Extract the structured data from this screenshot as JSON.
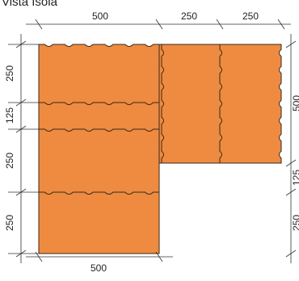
{
  "title": "Vista Isola",
  "dimensions": {
    "top": [
      "500",
      "250",
      "250"
    ],
    "bottom": [
      "500"
    ],
    "left": [
      "250",
      "125",
      "250",
      "250"
    ],
    "right": [
      "500",
      "125",
      "250"
    ]
  },
  "colors": {
    "brick": "#EE8B40",
    "outline": "#3a2a1a",
    "dim_line": "#333333",
    "text": "#222222"
  }
}
